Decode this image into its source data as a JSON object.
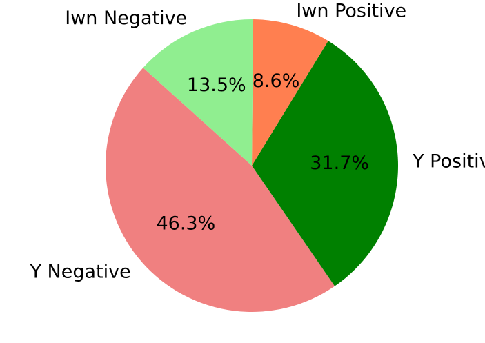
{
  "chart_data": {
    "type": "pie",
    "title": "",
    "slices": [
      {
        "label": "Y Negative",
        "value": 46.3,
        "pct_label": "46.3%",
        "color": "#f08080"
      },
      {
        "label": "Y Positive",
        "value": 31.7,
        "pct_label": "31.7%",
        "color": "#008000"
      },
      {
        "label": "Iwn Positive",
        "value": 8.6,
        "pct_label": "8.6%",
        "color": "#ff7f50"
      },
      {
        "label": "Iwn Negative",
        "value": 13.5,
        "pct_label": "13.5%",
        "color": "#90ee90"
      }
    ],
    "direction": "counterclockwise",
    "legend": "none"
  }
}
